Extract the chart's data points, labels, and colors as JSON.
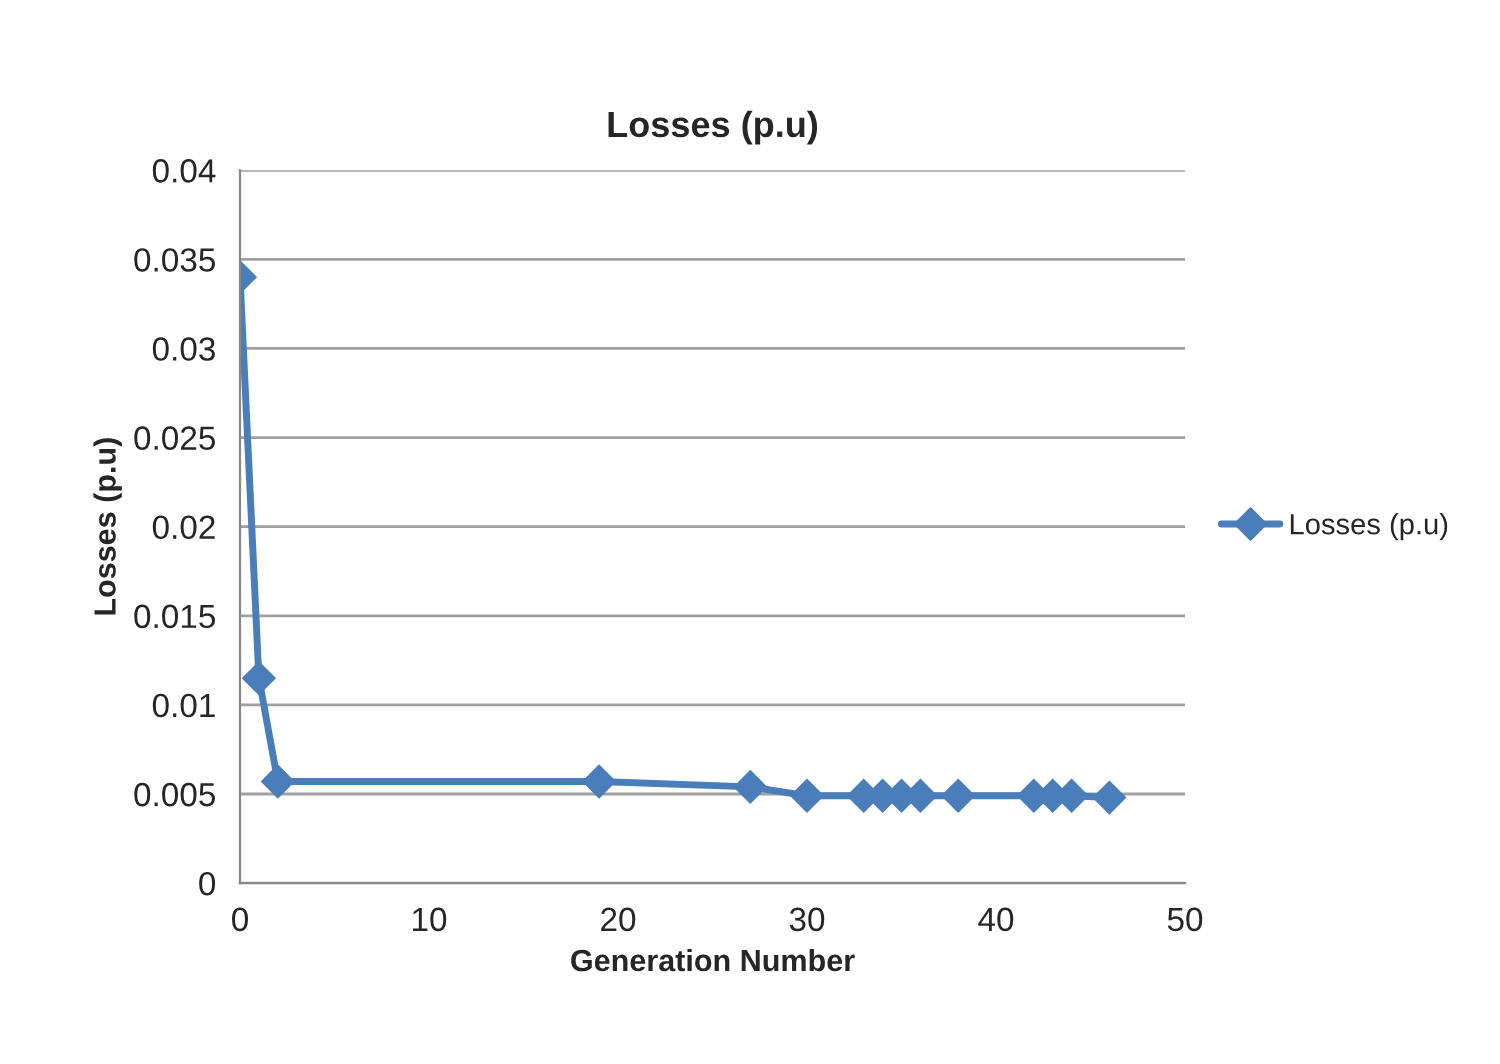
{
  "chart_data": {
    "type": "line",
    "title": "Losses (p.u)",
    "xlabel": "Generation Number",
    "ylabel": "Losses (p.u)",
    "x": [
      0,
      1,
      2,
      19,
      27,
      30,
      33,
      34,
      35,
      36,
      38,
      42,
      43,
      44,
      46
    ],
    "series": [
      {
        "name": "Losses (p.u)",
        "color": "#4a7ebb",
        "values": [
          0.034,
          0.0115,
          0.0057,
          0.0057,
          0.0054,
          0.0049,
          0.0049,
          0.0049,
          0.0049,
          0.0049,
          0.0049,
          0.0049,
          0.0049,
          0.0049,
          0.0048
        ]
      }
    ],
    "xlim": [
      0,
      50
    ],
    "xticks": [
      0,
      10,
      20,
      30,
      40,
      50
    ],
    "ylim": [
      0,
      0.04
    ],
    "yticks": [
      0,
      0.005,
      0.01,
      0.015,
      0.02,
      0.025,
      0.03,
      0.035,
      0.04
    ],
    "grid": "y",
    "legend": "right",
    "marker": "diamond",
    "line_style": "solid"
  }
}
